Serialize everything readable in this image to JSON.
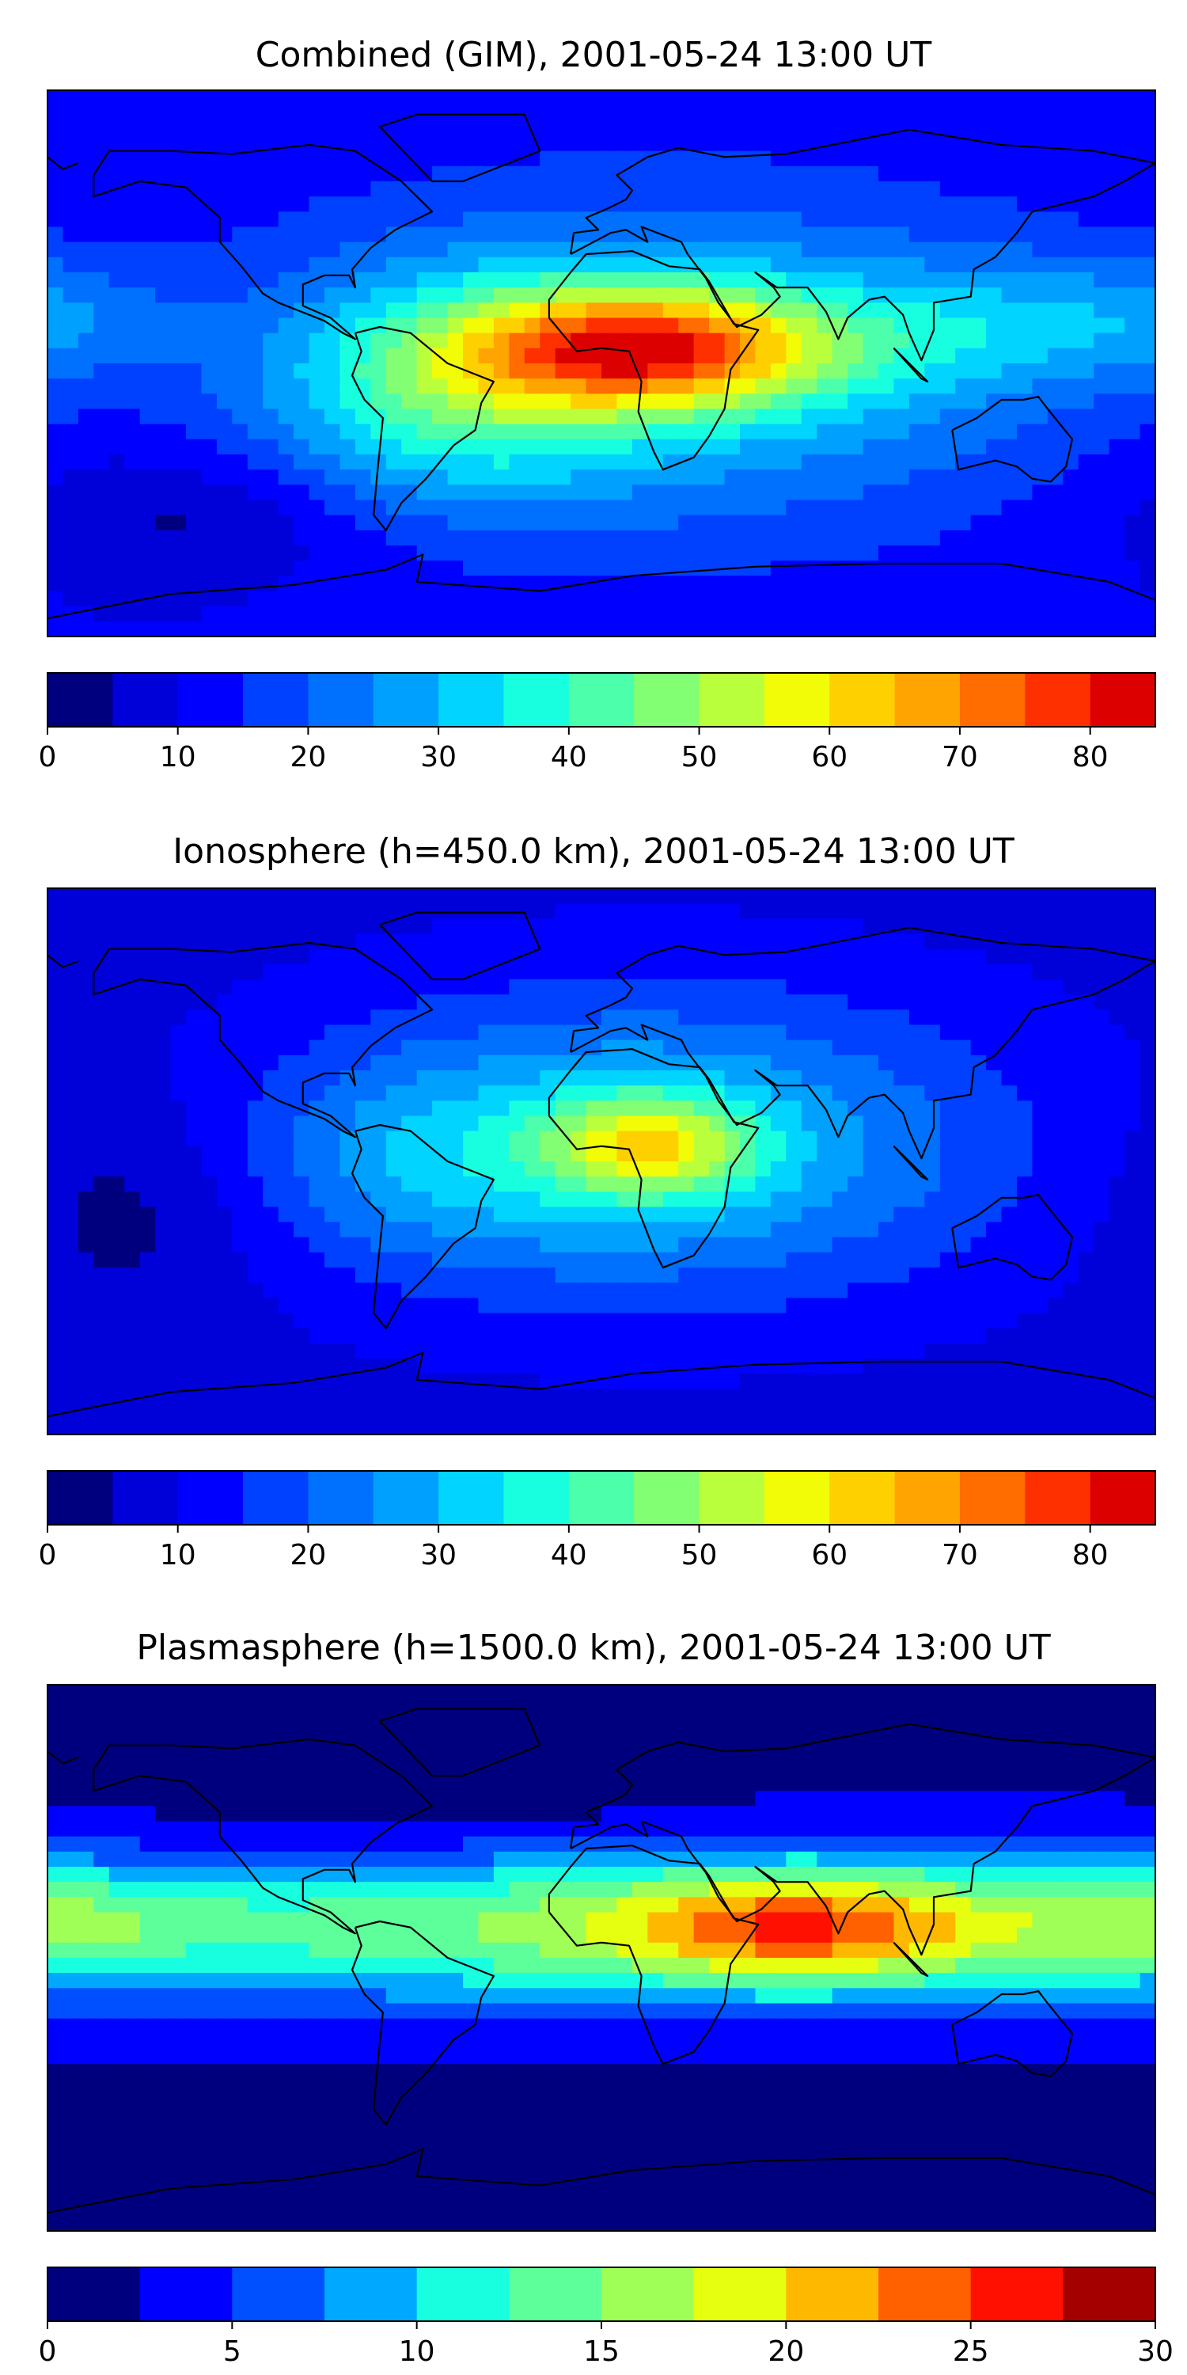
{
  "chart_data": [
    {
      "type": "heatmap",
      "title": "Combined (GIM), 2001-05-24 13:00 UT",
      "colorbar": {
        "levels": [
          0,
          5,
          10,
          15,
          20,
          25,
          30,
          35,
          40,
          45,
          50,
          55,
          60,
          65,
          70,
          75,
          80,
          85
        ],
        "tick_labels": [
          "0",
          "10",
          "20",
          "30",
          "40",
          "50",
          "60",
          "70",
          "80"
        ],
        "colors": [
          "#00007f",
          "#0000d8",
          "#0000ff",
          "#0040ff",
          "#0070ff",
          "#00a0ff",
          "#00d4ff",
          "#17ffdf",
          "#4cffaa",
          "#83ff73",
          "#baff3c",
          "#f1fc06",
          "#ffd000",
          "#ffa400",
          "#ff6c00",
          "#ff3000",
          "#dd0000",
          "#8f0000"
        ]
      },
      "peak": {
        "lon": 15,
        "lat": 5,
        "value": 83
      }
    },
    {
      "type": "heatmap",
      "title": "Ionosphere  (h=450.0 km), 2001-05-24 13:00 UT",
      "colorbar": {
        "levels": [
          0,
          5,
          10,
          15,
          20,
          25,
          30,
          35,
          40,
          45,
          50,
          55,
          60,
          65,
          70,
          75,
          80,
          85
        ],
        "tick_labels": [
          "0",
          "10",
          "20",
          "30",
          "40",
          "50",
          "60",
          "70",
          "80"
        ],
        "colors": [
          "#00007f",
          "#0000d8",
          "#0000ff",
          "#0040ff",
          "#0070ff",
          "#00a0ff",
          "#00d4ff",
          "#17ffdf",
          "#4cffaa",
          "#83ff73",
          "#baff3c",
          "#f1fc06",
          "#ffd000",
          "#ffa400",
          "#ff6c00",
          "#ff3000",
          "#dd0000",
          "#8f0000"
        ]
      },
      "peak": {
        "lon": 15,
        "lat": 5,
        "value": 62
      }
    },
    {
      "type": "heatmap",
      "title": "Plasmasphere (h=1500.0 km), 2001-05-24 13:00 UT",
      "colorbar": {
        "levels": [
          0,
          2.5,
          5,
          7.5,
          10,
          12.5,
          15,
          17.5,
          20,
          22.5,
          25,
          27.5,
          30
        ],
        "tick_labels": [
          "0",
          "5",
          "10",
          "15",
          "20",
          "25",
          "30"
        ],
        "colors": [
          "#00007f",
          "#0000ff",
          "#0050ff",
          "#00a8ff",
          "#17ffdf",
          "#5cff9a",
          "#a0ff56",
          "#e6ff10",
          "#ffb800",
          "#ff6000",
          "#ff1000",
          "#a50000"
        ]
      },
      "peak": {
        "lon": 65,
        "lat": 10,
        "value": 26
      }
    }
  ]
}
